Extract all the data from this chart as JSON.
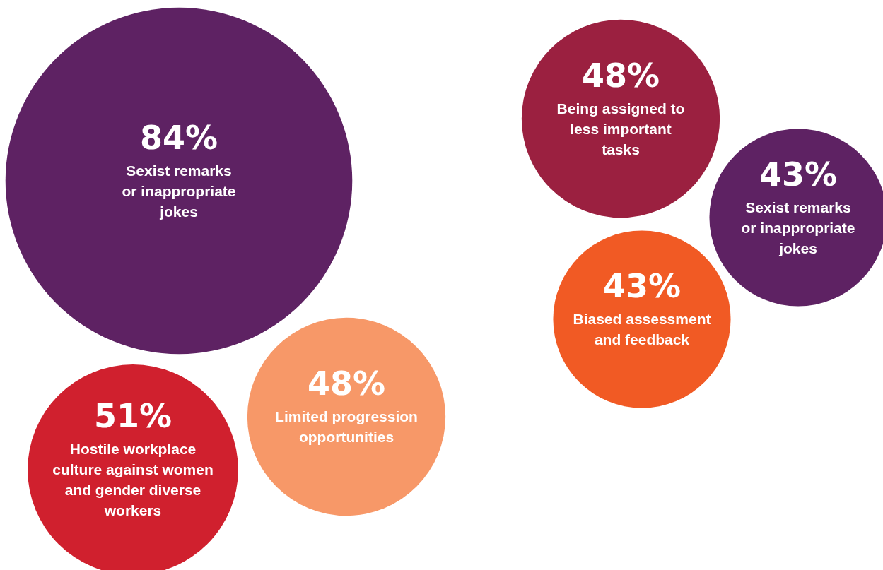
{
  "chart_data": {
    "type": "other",
    "categories": [
      "Sexist remarks or inappropriate jokes",
      "Hostile workplace culture against women and gender diverse workers",
      "Limited progression opportunities",
      "Being assigned to less important tasks",
      "Sexist remarks or inappropriate jokes",
      "Biased assessment and feedback"
    ],
    "values": [
      84,
      51,
      48,
      48,
      43,
      43
    ],
    "value_labels": [
      "84%",
      "51%",
      "48%",
      "48%",
      "43%",
      "43%"
    ],
    "colors": [
      "#5e2263",
      "#d0202e",
      "#f79868",
      "#9b2040",
      "#5e2263",
      "#f15a24"
    ]
  }
}
